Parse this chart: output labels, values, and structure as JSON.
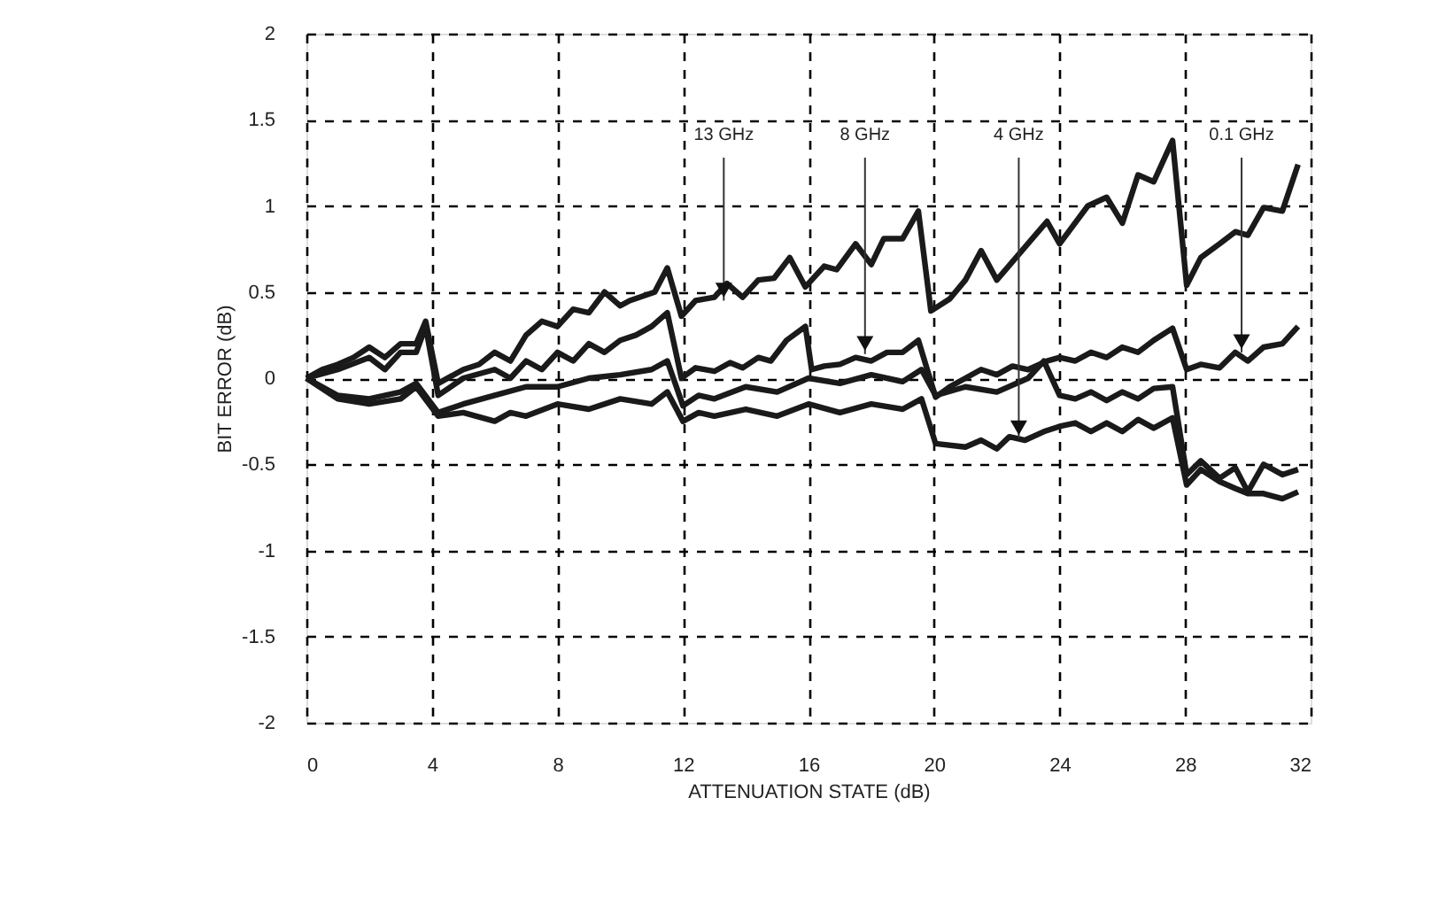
{
  "chart_data": {
    "type": "line",
    "xlabel": "ATTENUATION STATE (dB)",
    "ylabel": "BIT ERROR (dB)",
    "xlim": [
      0,
      32
    ],
    "ylim": [
      -2,
      2
    ],
    "xticks": [
      0,
      4,
      8,
      12,
      16,
      20,
      24,
      28,
      32
    ],
    "yticks": [
      -2,
      -1.5,
      -1,
      -0.5,
      0,
      0.5,
      1,
      1.5,
      2
    ],
    "grid": true,
    "marker": "none",
    "line_style": "solid",
    "series": [
      {
        "color": "#1a1a1a",
        "x": [
          0,
          0.5,
          1,
          1.5,
          2,
          2.5,
          3,
          3.5,
          3.8,
          4.2,
          5,
          5.5,
          6,
          6.5,
          7,
          7.5,
          8,
          8.5,
          9,
          9.5,
          10,
          10.3,
          11.1,
          11.5,
          11.95,
          12.4,
          13,
          13.4,
          13.9,
          14.4,
          14.9,
          15.4,
          15.9,
          16.5,
          16.9,
          17.5,
          18,
          18.4,
          19,
          19.5,
          19.9,
          20.5,
          21,
          21.5,
          22,
          23.6,
          24,
          24.9,
          25.5,
          26,
          26.5,
          27,
          27.6,
          28.05,
          28.5,
          29.1,
          29.6,
          30,
          30.5,
          31.1,
          31.6
        ],
        "values": [
          0,
          0.05,
          0.08,
          0.12,
          0.18,
          0.12,
          0.2,
          0.2,
          0.33,
          -0.03,
          0.05,
          0.08,
          0.15,
          0.1,
          0.25,
          0.33,
          0.3,
          0.4,
          0.38,
          0.5,
          0.42,
          0.45,
          0.5,
          0.64,
          0.36,
          0.45,
          0.47,
          0.55,
          0.47,
          0.57,
          0.58,
          0.7,
          0.53,
          0.65,
          0.63,
          0.78,
          0.66,
          0.81,
          0.81,
          0.97,
          0.39,
          0.46,
          0.57,
          0.74,
          0.57,
          0.91,
          0.78,
          1.0,
          1.05,
          0.9,
          1.18,
          1.14,
          1.38,
          0.54,
          0.7,
          0.78,
          0.85,
          0.83,
          0.99,
          0.97,
          1.24
        ]
      },
      {
        "color": "#1a1a1a",
        "x": [
          0,
          1,
          2,
          2.5,
          3,
          3.5,
          3.8,
          4.2,
          5,
          6,
          6.5,
          7,
          7.5,
          8,
          8.5,
          9,
          9.5,
          10,
          10.5,
          11,
          11.5,
          11.95,
          12.4,
          13,
          13.5,
          13.9,
          14.4,
          14.8,
          15.3,
          15.9,
          16.1,
          16.5,
          17,
          17.5,
          18,
          18.5,
          19,
          19.5,
          20.05,
          20.5,
          21,
          21.5,
          22,
          22.5,
          23,
          23.6,
          24,
          24.5,
          25,
          25.5,
          26,
          26.5,
          27,
          27.6,
          28.05,
          28.5,
          29.1,
          29.6,
          30,
          30.5,
          31.1,
          31.6
        ],
        "values": [
          0,
          0.05,
          0.12,
          0.05,
          0.15,
          0.15,
          0.3,
          -0.1,
          0.0,
          0.05,
          0.0,
          0.1,
          0.05,
          0.15,
          0.1,
          0.2,
          0.15,
          0.22,
          0.25,
          0.3,
          0.38,
          0.0,
          0.06,
          0.04,
          0.09,
          0.06,
          0.12,
          0.1,
          0.22,
          0.3,
          0.05,
          0.07,
          0.08,
          0.12,
          0.1,
          0.15,
          0.15,
          0.22,
          -0.11,
          -0.05,
          0.0,
          0.05,
          0.02,
          0.07,
          0.05,
          0.1,
          0.12,
          0.1,
          0.15,
          0.12,
          0.18,
          0.15,
          0.22,
          0.29,
          0.05,
          0.08,
          0.06,
          0.15,
          0.1,
          0.18,
          0.2,
          0.3
        ]
      },
      {
        "color": "#1a1a1a",
        "x": [
          0,
          1,
          2,
          3,
          3.5,
          4.2,
          5,
          6,
          7,
          8,
          9,
          10,
          11,
          11.5,
          12,
          12.5,
          13,
          14,
          15,
          16,
          17,
          18,
          19,
          19.6,
          20.05,
          21,
          22,
          23,
          23.5,
          24,
          24.5,
          25,
          25.5,
          26,
          26.5,
          27,
          27.6,
          28.05,
          28.5,
          29.1,
          29.6,
          30,
          30.5,
          31.1,
          31.6
        ],
        "values": [
          0,
          -0.1,
          -0.12,
          -0.08,
          -0.03,
          -0.2,
          -0.15,
          -0.1,
          -0.05,
          -0.05,
          0.0,
          0.02,
          0.05,
          0.1,
          -0.16,
          -0.1,
          -0.12,
          -0.05,
          -0.08,
          0.0,
          -0.03,
          0.02,
          -0.02,
          0.05,
          -0.1,
          -0.05,
          -0.08,
          0.0,
          0.1,
          -0.1,
          -0.12,
          -0.08,
          -0.13,
          -0.08,
          -0.12,
          -0.06,
          -0.05,
          -0.56,
          -0.48,
          -0.58,
          -0.52,
          -0.66,
          -0.5,
          -0.56,
          -0.53
        ]
      },
      {
        "color": "#1a1a1a",
        "x": [
          0,
          1,
          2,
          3,
          3.5,
          4.2,
          5,
          6,
          6.5,
          7,
          8,
          9,
          10,
          11,
          11.5,
          12,
          12.5,
          13,
          14,
          15,
          16,
          17,
          18,
          19,
          19.6,
          20.05,
          21,
          21.5,
          22,
          22.4,
          22.9,
          23.5,
          24,
          24.5,
          25,
          25.5,
          26,
          26.5,
          27,
          27.6,
          28.05,
          28.5,
          29.1,
          29.6,
          30,
          30.5,
          31.1,
          31.6
        ],
        "values": [
          0,
          -0.12,
          -0.15,
          -0.12,
          -0.05,
          -0.22,
          -0.2,
          -0.25,
          -0.2,
          -0.22,
          -0.15,
          -0.18,
          -0.12,
          -0.15,
          -0.08,
          -0.25,
          -0.2,
          -0.22,
          -0.18,
          -0.22,
          -0.15,
          -0.2,
          -0.15,
          -0.18,
          -0.12,
          -0.38,
          -0.4,
          -0.36,
          -0.41,
          -0.34,
          -0.36,
          -0.31,
          -0.28,
          -0.26,
          -0.31,
          -0.26,
          -0.31,
          -0.24,
          -0.29,
          -0.23,
          -0.62,
          -0.53,
          -0.6,
          -0.64,
          -0.67,
          -0.67,
          -0.7,
          -0.66
        ]
      }
    ],
    "annotations": [
      {
        "text": "13 GHz",
        "x": 13.3,
        "y": 0.45
      },
      {
        "text": "8 GHz",
        "x": 17.8,
        "y": 0.14
      },
      {
        "text": "4 GHz",
        "x": 22.7,
        "y": -0.35
      },
      {
        "text": "0.1 GHz",
        "x": 29.8,
        "y": 0.15
      }
    ]
  }
}
